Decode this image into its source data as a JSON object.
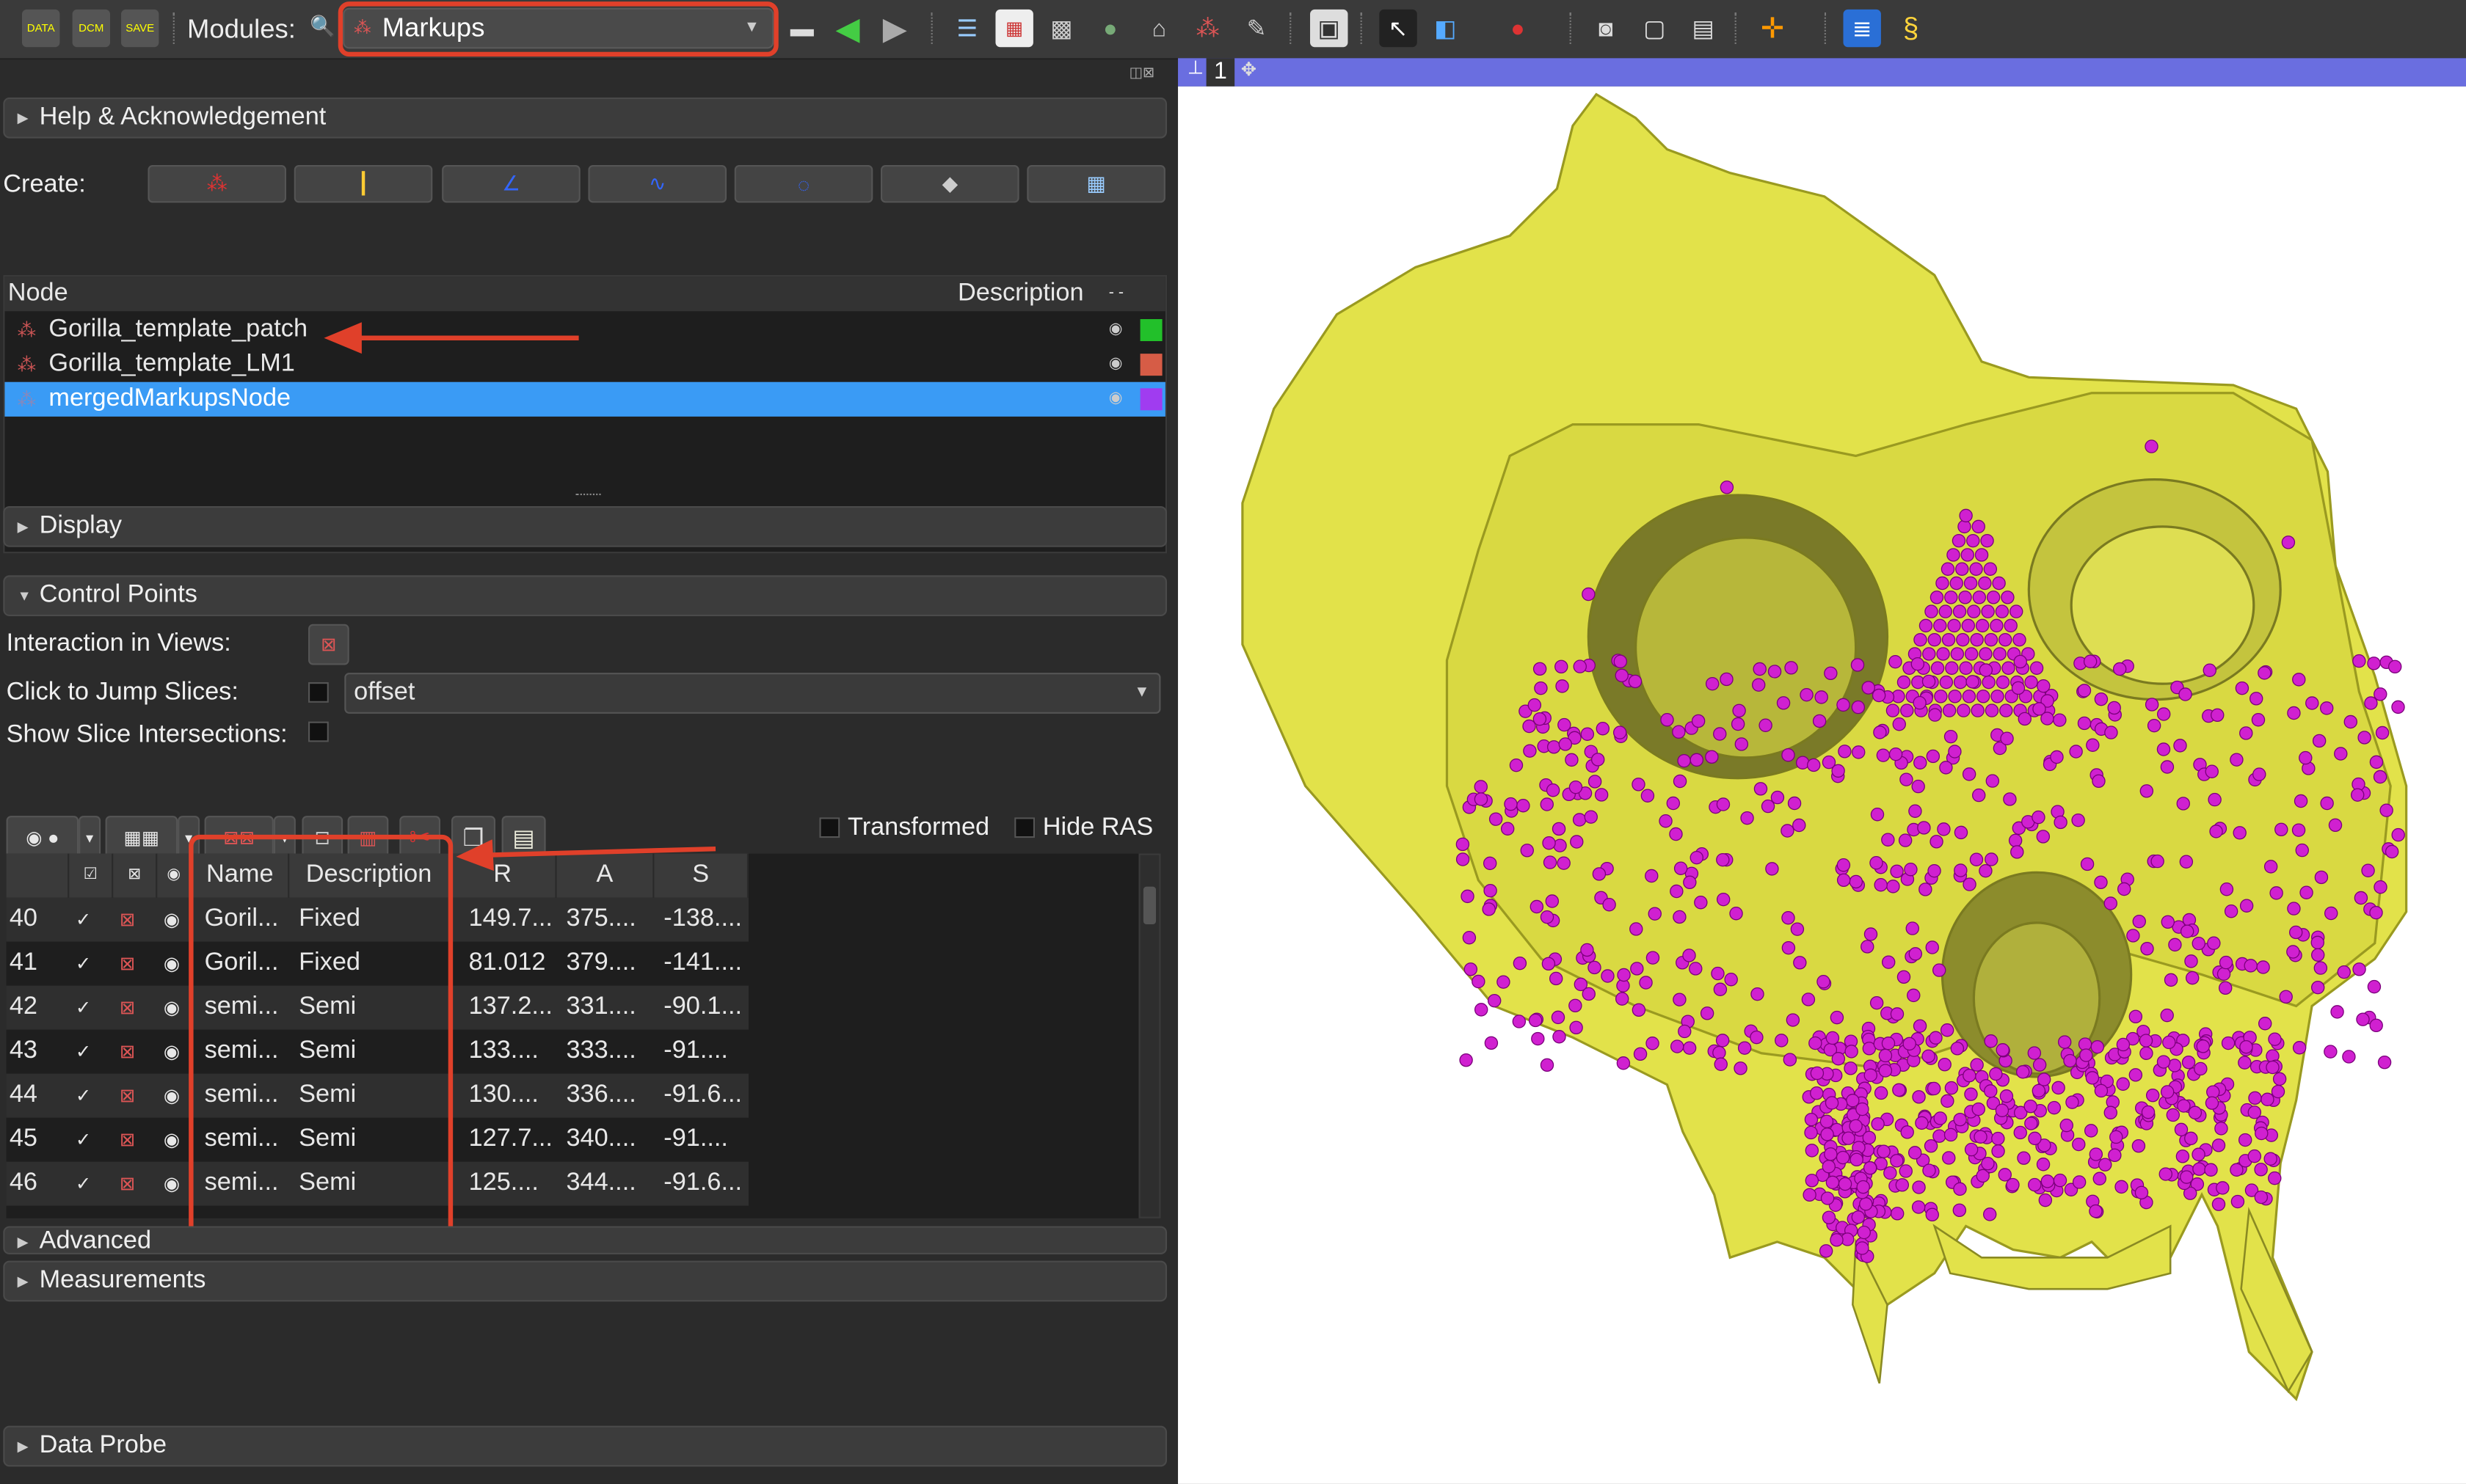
{
  "toolbar": {
    "modules_label": "Modules:",
    "current_module": "Markups",
    "icons": [
      {
        "name": "data-icon",
        "label": "DATA"
      },
      {
        "name": "dcm-icon",
        "label": "DCM"
      },
      {
        "name": "save-icon",
        "label": "SAVE"
      }
    ]
  },
  "sections": {
    "help": "Help & Acknowledgement",
    "display": "Display",
    "control_points": "Control Points",
    "advanced": "Advanced",
    "measurements": "Measurements",
    "data_probe": "Data Probe"
  },
  "create": {
    "label": "Create:"
  },
  "node_tree": {
    "col_node": "Node",
    "col_description": "Description",
    "nodes": [
      {
        "name": "Gorilla_template_patch",
        "color": "#22c02a"
      },
      {
        "name": "Gorilla_template_LM1",
        "color": "#d65c46"
      },
      {
        "name": "mergedMarkupsNode",
        "color": "#a03cf0"
      }
    ]
  },
  "control_points": {
    "interaction_label": "Interaction in Views:",
    "jump_label": "Click to Jump Slices:",
    "jump_value": "offset",
    "intersections_label": "Show Slice Intersections:",
    "transformed_label": "Transformed",
    "hide_ras_label": "Hide RAS",
    "columns": {
      "name": "Name",
      "description": "Description",
      "r": "R",
      "a": "A",
      "s": "S"
    },
    "rows": [
      {
        "idx": "40",
        "name": "Goril...",
        "desc": "Fixed",
        "r": "149.7...",
        "a": "375....",
        "s": "-138...."
      },
      {
        "idx": "41",
        "name": "Goril...",
        "desc": "Fixed",
        "r": "81.012",
        "a": "379....",
        "s": "-141...."
      },
      {
        "idx": "42",
        "name": "semi...",
        "desc": "Semi",
        "r": "137.2...",
        "a": "331....",
        "s": "-90.1..."
      },
      {
        "idx": "43",
        "name": "semi...",
        "desc": "Semi",
        "r": "133....",
        "a": "333....",
        "s": "-91...."
      },
      {
        "idx": "44",
        "name": "semi...",
        "desc": "Semi",
        "r": "130....",
        "a": "336....",
        "s": "-91.6..."
      },
      {
        "idx": "45",
        "name": "semi...",
        "desc": "Semi",
        "r": "127.7...",
        "a": "340....",
        "s": "-91...."
      },
      {
        "idx": "46",
        "name": "semi...",
        "desc": "Semi",
        "r": "125....",
        "a": "344....",
        "s": "-91.6..."
      }
    ]
  },
  "view": {
    "label": "1",
    "skull_color": "#e2e24a",
    "point_color": "#d020d0"
  },
  "colors": {
    "highlight": "#e0402a",
    "selection": "#3a9bf5"
  }
}
